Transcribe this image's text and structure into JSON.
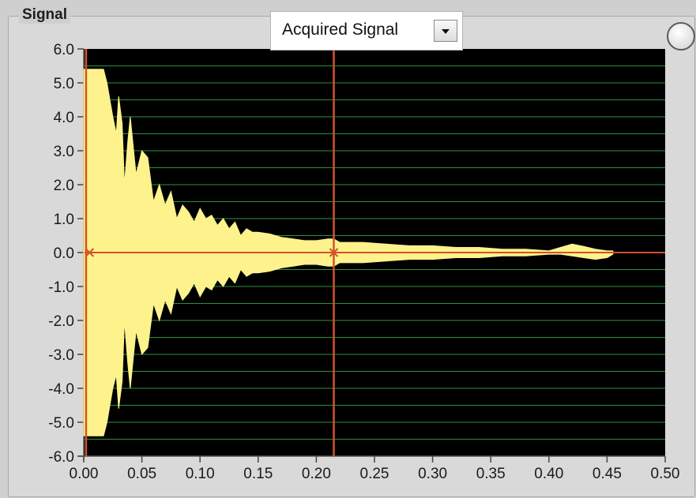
{
  "panel": {
    "title": "Signal"
  },
  "plot_selector": {
    "label": "Acquired Signal",
    "icon": "chevron-down-icon"
  },
  "colors": {
    "plot_background": "#000000",
    "grid": "#2f8f3f",
    "trace": "#fdf28c",
    "cursor": "#d4522a"
  },
  "chart_data": {
    "type": "area",
    "title": "",
    "xlabel": "",
    "ylabel": "",
    "xlim": [
      0.0,
      0.5
    ],
    "ylim": [
      -6.0,
      6.0
    ],
    "x_ticks": [
      "0.00",
      "0.05",
      "0.10",
      "0.15",
      "0.20",
      "0.25",
      "0.30",
      "0.35",
      "0.40",
      "0.45",
      "0.50"
    ],
    "y_ticks": [
      "6.0",
      "5.0",
      "4.0",
      "3.0",
      "2.0",
      "1.0",
      "0.0",
      "-1.0",
      "-2.0",
      "-3.0",
      "-4.0",
      "-5.0",
      "-6.0"
    ],
    "grid": true,
    "cursor_x": 0.215,
    "series": [
      {
        "x": [
          0.0,
          0.017,
          0.02,
          0.025,
          0.028,
          0.03,
          0.033,
          0.035,
          0.038,
          0.04,
          0.045,
          0.05,
          0.055,
          0.06,
          0.065,
          0.07,
          0.075,
          0.08,
          0.085,
          0.09,
          0.095,
          0.1,
          0.105,
          0.11,
          0.115,
          0.12,
          0.125,
          0.13,
          0.135,
          0.14,
          0.145,
          0.15,
          0.16,
          0.17,
          0.18,
          0.19,
          0.2,
          0.21,
          0.215,
          0.22,
          0.24,
          0.26,
          0.28,
          0.3,
          0.32,
          0.34,
          0.36,
          0.38,
          0.4,
          0.41,
          0.42,
          0.43,
          0.44,
          0.45,
          0.455
        ],
        "upper": [
          5.4,
          5.4,
          5.0,
          4.0,
          3.5,
          4.6,
          3.8,
          2.0,
          3.3,
          4.0,
          2.3,
          3.0,
          2.8,
          1.5,
          2.0,
          1.4,
          1.8,
          1.0,
          1.4,
          1.2,
          0.9,
          1.3,
          1.0,
          1.1,
          0.8,
          1.0,
          0.7,
          0.9,
          0.5,
          0.7,
          0.6,
          0.6,
          0.55,
          0.45,
          0.4,
          0.35,
          0.35,
          0.4,
          0.4,
          0.3,
          0.3,
          0.25,
          0.2,
          0.2,
          0.15,
          0.15,
          0.1,
          0.1,
          0.05,
          0.15,
          0.25,
          0.18,
          0.1,
          0.05,
          0.05
        ],
        "lower": [
          -5.4,
          -5.4,
          -5.0,
          -4.0,
          -3.6,
          -4.6,
          -3.8,
          -2.0,
          -3.3,
          -4.0,
          -2.3,
          -3.0,
          -2.8,
          -1.5,
          -2.0,
          -1.4,
          -1.8,
          -1.0,
          -1.4,
          -1.2,
          -0.9,
          -1.3,
          -1.0,
          -1.1,
          -0.8,
          -1.0,
          -0.7,
          -0.9,
          -0.5,
          -0.7,
          -0.6,
          -0.6,
          -0.55,
          -0.45,
          -0.4,
          -0.35,
          -0.35,
          -0.4,
          -0.4,
          -0.3,
          -0.3,
          -0.25,
          -0.2,
          -0.2,
          -0.15,
          -0.15,
          -0.1,
          -0.1,
          -0.05,
          -0.05,
          -0.1,
          -0.15,
          -0.2,
          -0.15,
          -0.05
        ]
      }
    ]
  }
}
